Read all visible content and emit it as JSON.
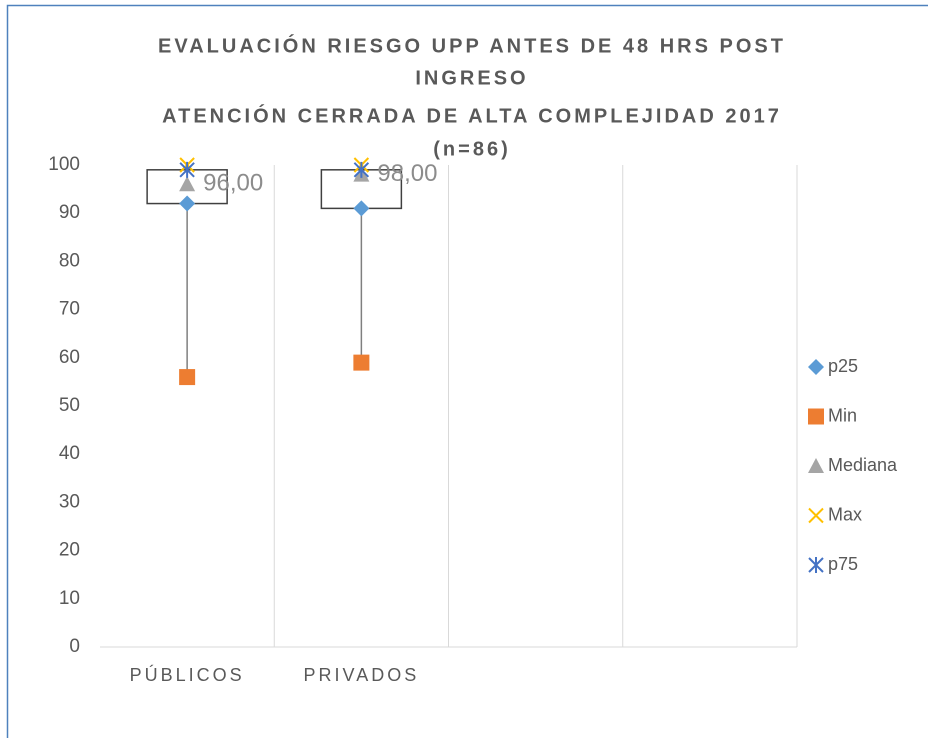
{
  "chart_data": {
    "type": "box",
    "title": [
      "EVALUACIÓN RIESGO UPP ANTES DE 48 HRS POST",
      "INGRESO",
      "ATENCIÓN CERRADA DE ALTA COMPLEJIDAD 2017",
      "(n=86)"
    ],
    "categories": [
      "PÚBLICOS",
      "PRIVADOS",
      null,
      null
    ],
    "series": [
      {
        "name": "p25",
        "color": "#5b9bd5",
        "marker": "diamond",
        "values": [
          92,
          91,
          null,
          null
        ]
      },
      {
        "name": "Min",
        "color": "#ed7d31",
        "marker": "square",
        "values": [
          56,
          59,
          null,
          null
        ]
      },
      {
        "name": "Mediana",
        "color": "#a5a5a5",
        "marker": "triangle",
        "values": [
          96,
          98,
          null,
          null
        ],
        "value_labels": [
          "96,00",
          "98,00",
          null,
          null
        ]
      },
      {
        "name": "Max",
        "color": "#ffc000",
        "marker": "x",
        "values": [
          100,
          100,
          null,
          null
        ]
      },
      {
        "name": "p75",
        "color": "#4472c4",
        "marker": "asterisk",
        "values": [
          99,
          99,
          null,
          null
        ]
      }
    ],
    "ylim": [
      0,
      100
    ],
    "yticks": [
      0,
      10,
      20,
      30,
      40,
      50,
      60,
      70,
      80,
      90,
      100
    ],
    "grid": "x",
    "legend": "right"
  }
}
